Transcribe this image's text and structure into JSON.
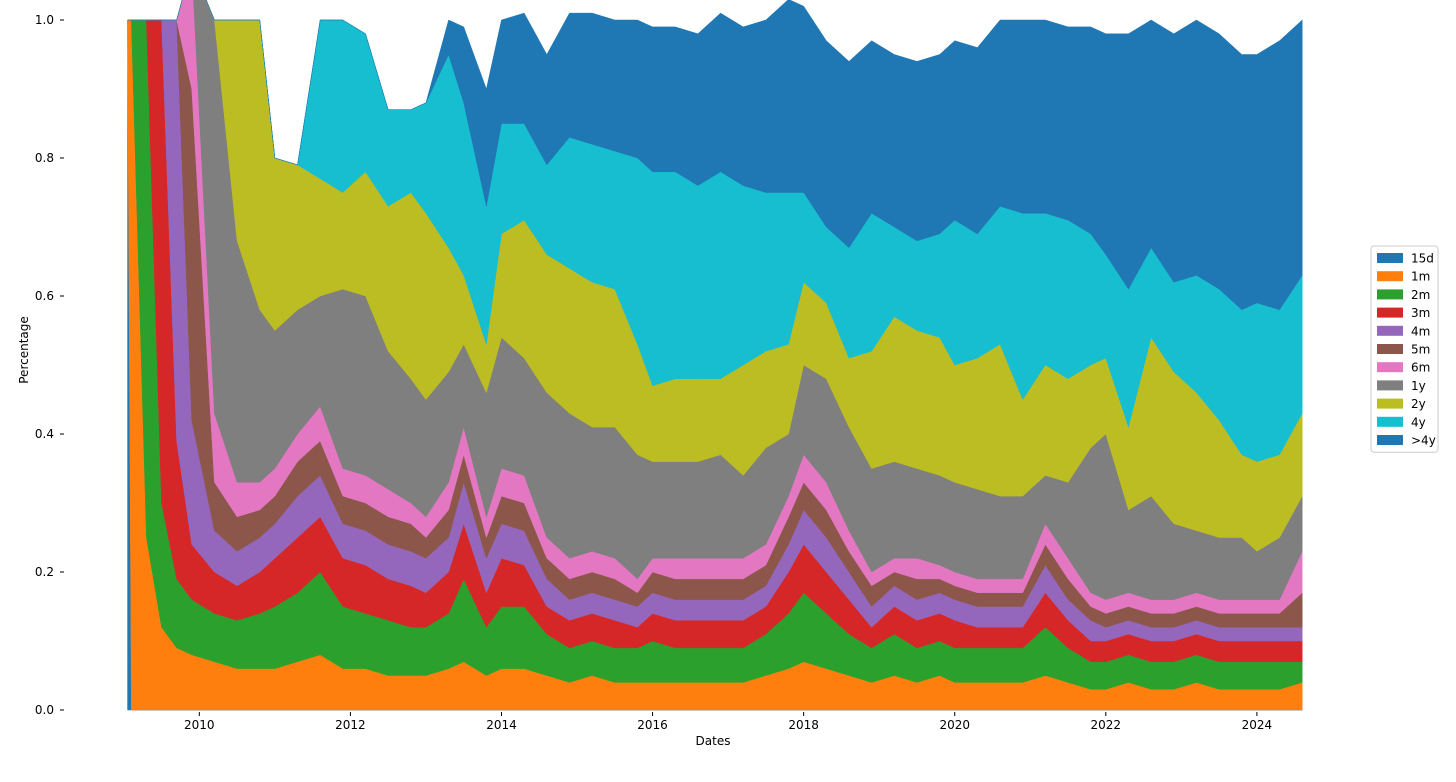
{
  "chart_data": {
    "type": "area",
    "stacked": true,
    "normalized": true,
    "xlabel": "Dates",
    "ylabel": "Percentage",
    "xlim": [
      2008.95,
      2024.65
    ],
    "ylim": [
      0.0,
      1.0
    ],
    "x_ticks": [
      "2010",
      "2012",
      "2014",
      "2016",
      "2018",
      "2020",
      "2022",
      "2024"
    ],
    "x_tick_values": [
      2010,
      2012,
      2014,
      2016,
      2018,
      2020,
      2022,
      2024
    ],
    "y_ticks": [
      "0.0",
      "0.2",
      "0.4",
      "0.6",
      "0.8",
      "1.0"
    ],
    "y_tick_values": [
      0.0,
      0.2,
      0.4,
      0.6,
      0.8,
      1.0
    ],
    "grid": false,
    "legend_position": "right",
    "x": [
      2009.05,
      2009.1,
      2009.3,
      2009.5,
      2009.7,
      2009.9,
      2010.2,
      2010.5,
      2010.8,
      2011.0,
      2011.3,
      2011.6,
      2011.9,
      2012.2,
      2012.5,
      2012.8,
      2013.0,
      2013.3,
      2013.5,
      2013.8,
      2014.0,
      2014.3,
      2014.6,
      2014.9,
      2015.2,
      2015.5,
      2015.8,
      2016.0,
      2016.3,
      2016.6,
      2016.9,
      2017.2,
      2017.5,
      2017.8,
      2018.0,
      2018.3,
      2018.6,
      2018.9,
      2019.2,
      2019.5,
      2019.8,
      2020.0,
      2020.3,
      2020.6,
      2020.9,
      2021.2,
      2021.5,
      2021.8,
      2022.0,
      2022.3,
      2022.6,
      2022.9,
      2023.2,
      2023.5,
      2023.8,
      2024.0,
      2024.3,
      2024.6
    ],
    "series": [
      {
        "name": "15d",
        "color": "#1f77b4",
        "values": [
          1.0,
          0.0,
          0.0,
          0.0,
          0.0,
          0.0,
          0.0,
          0.0,
          0.0,
          0.0,
          0.0,
          0.0,
          0.0,
          0.0,
          0.0,
          0.0,
          0.0,
          0.0,
          0.0,
          0.0,
          0.0,
          0.0,
          0.0,
          0.0,
          0.0,
          0.0,
          0.0,
          0.0,
          0.0,
          0.0,
          0.0,
          0.0,
          0.0,
          0.0,
          0.0,
          0.0,
          0.0,
          0.0,
          0.0,
          0.0,
          0.0,
          0.0,
          0.0,
          0.0,
          0.0,
          0.0,
          0.0,
          0.0,
          0.0,
          0.0,
          0.0,
          0.0,
          0.0,
          0.0,
          0.0,
          0.0,
          0.0,
          0.0
        ]
      },
      {
        "name": "1m",
        "color": "#ff7f0e",
        "values": [
          0.0,
          1.0,
          0.25,
          0.12,
          0.09,
          0.08,
          0.07,
          0.06,
          0.06,
          0.06,
          0.07,
          0.08,
          0.06,
          0.06,
          0.05,
          0.05,
          0.05,
          0.06,
          0.07,
          0.05,
          0.06,
          0.06,
          0.05,
          0.04,
          0.05,
          0.04,
          0.04,
          0.04,
          0.04,
          0.04,
          0.04,
          0.04,
          0.05,
          0.06,
          0.07,
          0.06,
          0.05,
          0.04,
          0.05,
          0.04,
          0.05,
          0.04,
          0.04,
          0.04,
          0.04,
          0.05,
          0.04,
          0.03,
          0.03,
          0.04,
          0.03,
          0.03,
          0.04,
          0.03,
          0.03,
          0.03,
          0.03,
          0.04
        ]
      },
      {
        "name": "2m",
        "color": "#2ca02c",
        "values": [
          0.0,
          0.0,
          0.75,
          0.18,
          0.1,
          0.08,
          0.07,
          0.07,
          0.08,
          0.09,
          0.1,
          0.12,
          0.09,
          0.08,
          0.08,
          0.07,
          0.07,
          0.08,
          0.12,
          0.07,
          0.09,
          0.09,
          0.06,
          0.05,
          0.05,
          0.05,
          0.05,
          0.06,
          0.05,
          0.05,
          0.05,
          0.05,
          0.06,
          0.08,
          0.1,
          0.08,
          0.06,
          0.05,
          0.06,
          0.05,
          0.05,
          0.05,
          0.05,
          0.05,
          0.05,
          0.07,
          0.05,
          0.04,
          0.04,
          0.04,
          0.04,
          0.04,
          0.04,
          0.04,
          0.04,
          0.04,
          0.04,
          0.03
        ]
      },
      {
        "name": "3m",
        "color": "#d62728",
        "values": [
          0.0,
          0.0,
          0.0,
          0.7,
          0.2,
          0.08,
          0.06,
          0.05,
          0.06,
          0.07,
          0.08,
          0.08,
          0.07,
          0.07,
          0.06,
          0.06,
          0.05,
          0.06,
          0.08,
          0.05,
          0.07,
          0.06,
          0.04,
          0.04,
          0.04,
          0.04,
          0.03,
          0.04,
          0.04,
          0.04,
          0.04,
          0.04,
          0.04,
          0.06,
          0.07,
          0.06,
          0.05,
          0.03,
          0.04,
          0.04,
          0.04,
          0.04,
          0.03,
          0.03,
          0.03,
          0.05,
          0.04,
          0.03,
          0.03,
          0.03,
          0.03,
          0.03,
          0.03,
          0.03,
          0.03,
          0.03,
          0.03,
          0.03
        ]
      },
      {
        "name": "4m",
        "color": "#9467bd",
        "values": [
          0.0,
          0.0,
          0.0,
          0.0,
          0.61,
          0.18,
          0.06,
          0.05,
          0.05,
          0.05,
          0.06,
          0.06,
          0.05,
          0.05,
          0.05,
          0.05,
          0.05,
          0.05,
          0.06,
          0.05,
          0.05,
          0.05,
          0.04,
          0.03,
          0.03,
          0.03,
          0.03,
          0.03,
          0.03,
          0.03,
          0.03,
          0.03,
          0.03,
          0.04,
          0.05,
          0.05,
          0.04,
          0.03,
          0.03,
          0.03,
          0.03,
          0.03,
          0.03,
          0.03,
          0.03,
          0.04,
          0.03,
          0.03,
          0.02,
          0.02,
          0.02,
          0.02,
          0.02,
          0.02,
          0.02,
          0.02,
          0.02,
          0.02
        ]
      },
      {
        "name": "5m",
        "color": "#8c564b",
        "values": [
          0.0,
          0.0,
          0.0,
          0.0,
          0.0,
          0.48,
          0.07,
          0.05,
          0.04,
          0.04,
          0.05,
          0.05,
          0.04,
          0.04,
          0.04,
          0.04,
          0.03,
          0.04,
          0.04,
          0.03,
          0.04,
          0.04,
          0.03,
          0.03,
          0.03,
          0.03,
          0.02,
          0.03,
          0.03,
          0.03,
          0.03,
          0.03,
          0.03,
          0.04,
          0.04,
          0.04,
          0.03,
          0.03,
          0.02,
          0.03,
          0.02,
          0.02,
          0.02,
          0.02,
          0.02,
          0.03,
          0.03,
          0.02,
          0.02,
          0.02,
          0.02,
          0.02,
          0.02,
          0.02,
          0.02,
          0.02,
          0.02,
          0.05
        ]
      },
      {
        "name": "6m",
        "color": "#e377c2",
        "values": [
          0.0,
          0.0,
          0.0,
          0.0,
          0.0,
          0.18,
          0.1,
          0.05,
          0.04,
          0.04,
          0.04,
          0.05,
          0.04,
          0.04,
          0.04,
          0.03,
          0.03,
          0.04,
          0.04,
          0.03,
          0.04,
          0.04,
          0.03,
          0.03,
          0.03,
          0.03,
          0.02,
          0.02,
          0.03,
          0.03,
          0.03,
          0.03,
          0.03,
          0.03,
          0.04,
          0.04,
          0.03,
          0.02,
          0.02,
          0.03,
          0.02,
          0.02,
          0.02,
          0.02,
          0.02,
          0.03,
          0.03,
          0.02,
          0.02,
          0.02,
          0.02,
          0.02,
          0.02,
          0.02,
          0.02,
          0.02,
          0.02,
          0.06
        ]
      },
      {
        "name": "1y",
        "color": "#7f7f7f",
        "values": [
          0.0,
          0.0,
          0.0,
          0.0,
          0.0,
          0.0,
          0.57,
          0.35,
          0.25,
          0.2,
          0.18,
          0.16,
          0.26,
          0.26,
          0.2,
          0.18,
          0.17,
          0.16,
          0.12,
          0.18,
          0.19,
          0.17,
          0.21,
          0.21,
          0.18,
          0.19,
          0.18,
          0.14,
          0.14,
          0.14,
          0.15,
          0.12,
          0.14,
          0.09,
          0.13,
          0.15,
          0.15,
          0.15,
          0.14,
          0.13,
          0.13,
          0.13,
          0.13,
          0.12,
          0.12,
          0.07,
          0.11,
          0.21,
          0.24,
          0.12,
          0.15,
          0.11,
          0.09,
          0.09,
          0.09,
          0.07,
          0.09,
          0.08
        ]
      },
      {
        "name": "2y",
        "color": "#bcbd22",
        "values": [
          0.0,
          0.0,
          0.0,
          0.0,
          0.0,
          0.0,
          0.0,
          0.32,
          0.42,
          0.25,
          0.21,
          0.17,
          0.14,
          0.18,
          0.21,
          0.27,
          0.27,
          0.18,
          0.1,
          0.07,
          0.15,
          0.2,
          0.2,
          0.21,
          0.21,
          0.2,
          0.16,
          0.11,
          0.12,
          0.12,
          0.11,
          0.16,
          0.14,
          0.13,
          0.12,
          0.11,
          0.1,
          0.17,
          0.21,
          0.2,
          0.2,
          0.17,
          0.19,
          0.22,
          0.14,
          0.16,
          0.15,
          0.12,
          0.11,
          0.12,
          0.23,
          0.22,
          0.2,
          0.17,
          0.12,
          0.13,
          0.12,
          0.12
        ]
      },
      {
        "name": "4y",
        "color": "#17becf",
        "values": [
          0.0,
          0.0,
          0.0,
          0.0,
          0.0,
          0.0,
          0.0,
          0.0,
          0.0,
          0.0,
          0.0,
          0.23,
          0.25,
          0.2,
          0.14,
          0.12,
          0.16,
          0.28,
          0.25,
          0.2,
          0.16,
          0.14,
          0.13,
          0.19,
          0.2,
          0.2,
          0.27,
          0.31,
          0.3,
          0.28,
          0.3,
          0.26,
          0.23,
          0.22,
          0.13,
          0.11,
          0.16,
          0.2,
          0.13,
          0.13,
          0.15,
          0.21,
          0.18,
          0.2,
          0.27,
          0.22,
          0.23,
          0.19,
          0.15,
          0.2,
          0.13,
          0.13,
          0.17,
          0.19,
          0.21,
          0.23,
          0.21,
          0.2
        ]
      },
      {
        "name": ">4y",
        "color": "#1f77b4",
        "values": [
          0.0,
          0.0,
          0.0,
          0.0,
          0.0,
          0.0,
          0.0,
          0.0,
          0.0,
          0.0,
          0.0,
          0.0,
          0.0,
          0.0,
          0.0,
          0.0,
          0.0,
          0.05,
          0.11,
          0.17,
          0.15,
          0.16,
          0.16,
          0.18,
          0.19,
          0.19,
          0.2,
          0.21,
          0.21,
          0.22,
          0.23,
          0.23,
          0.25,
          0.28,
          0.27,
          0.27,
          0.27,
          0.25,
          0.25,
          0.26,
          0.26,
          0.26,
          0.27,
          0.27,
          0.28,
          0.28,
          0.28,
          0.3,
          0.32,
          0.37,
          0.33,
          0.36,
          0.37,
          0.37,
          0.37,
          0.36,
          0.39,
          0.37
        ]
      }
    ]
  }
}
